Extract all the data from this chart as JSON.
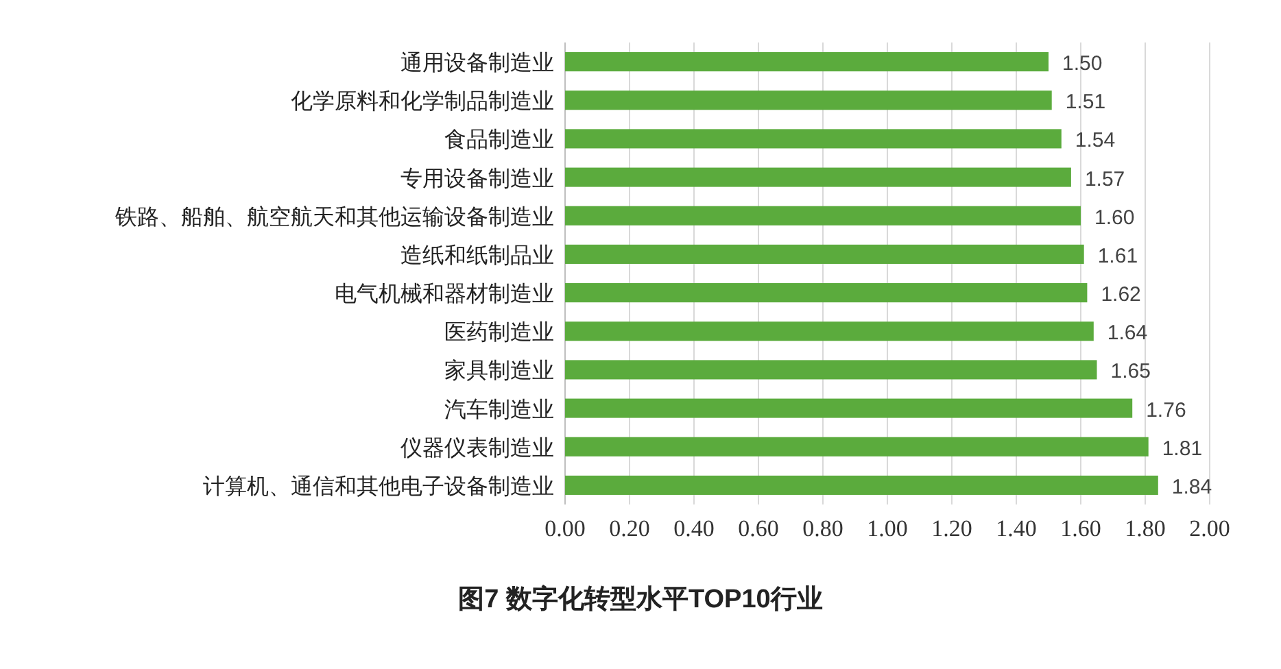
{
  "chart_data": {
    "type": "bar",
    "orientation": "horizontal",
    "title": "图7  数字化转型水平TOP10行业",
    "categories": [
      "通用设备制造业",
      "化学原料和化学制品制造业",
      "食品制造业",
      "专用设备制造业",
      "铁路、船舶、航空航天和其他运输设备制造业",
      "造纸和纸制品业",
      "电气机械和器材制造业",
      "医药制造业",
      "家具制造业",
      "汽车制造业",
      "仪器仪表制造业",
      "计算机、通信和其他电子设备制造业"
    ],
    "values": [
      1.5,
      1.51,
      1.54,
      1.57,
      1.6,
      1.61,
      1.62,
      1.64,
      1.65,
      1.76,
      1.81,
      1.84
    ],
    "color": "#5bab3d",
    "xlim": [
      0,
      2
    ],
    "xticks": [
      {
        "value": 0,
        "label": "0.00"
      },
      {
        "value": 0.2,
        "label": "0.20"
      },
      {
        "value": 0.4,
        "label": "0.40"
      },
      {
        "value": 0.6,
        "label": "0.60"
      },
      {
        "value": 0.8,
        "label": "0.80"
      },
      {
        "value": 1,
        "label": "1.00"
      },
      {
        "value": 1.2,
        "label": "1.20"
      },
      {
        "value": 1.4,
        "label": "1.40"
      },
      {
        "value": 1.6,
        "label": "1.60"
      },
      {
        "value": 1.8,
        "label": "1.80"
      },
      {
        "value": 2,
        "label": "2.00"
      }
    ],
    "value_labels": [
      "1.50",
      "1.51",
      "1.54",
      "1.57",
      "1.60",
      "1.61",
      "1.62",
      "1.64",
      "1.65",
      "1.76",
      "1.81",
      "1.84"
    ],
    "grid": "x"
  }
}
